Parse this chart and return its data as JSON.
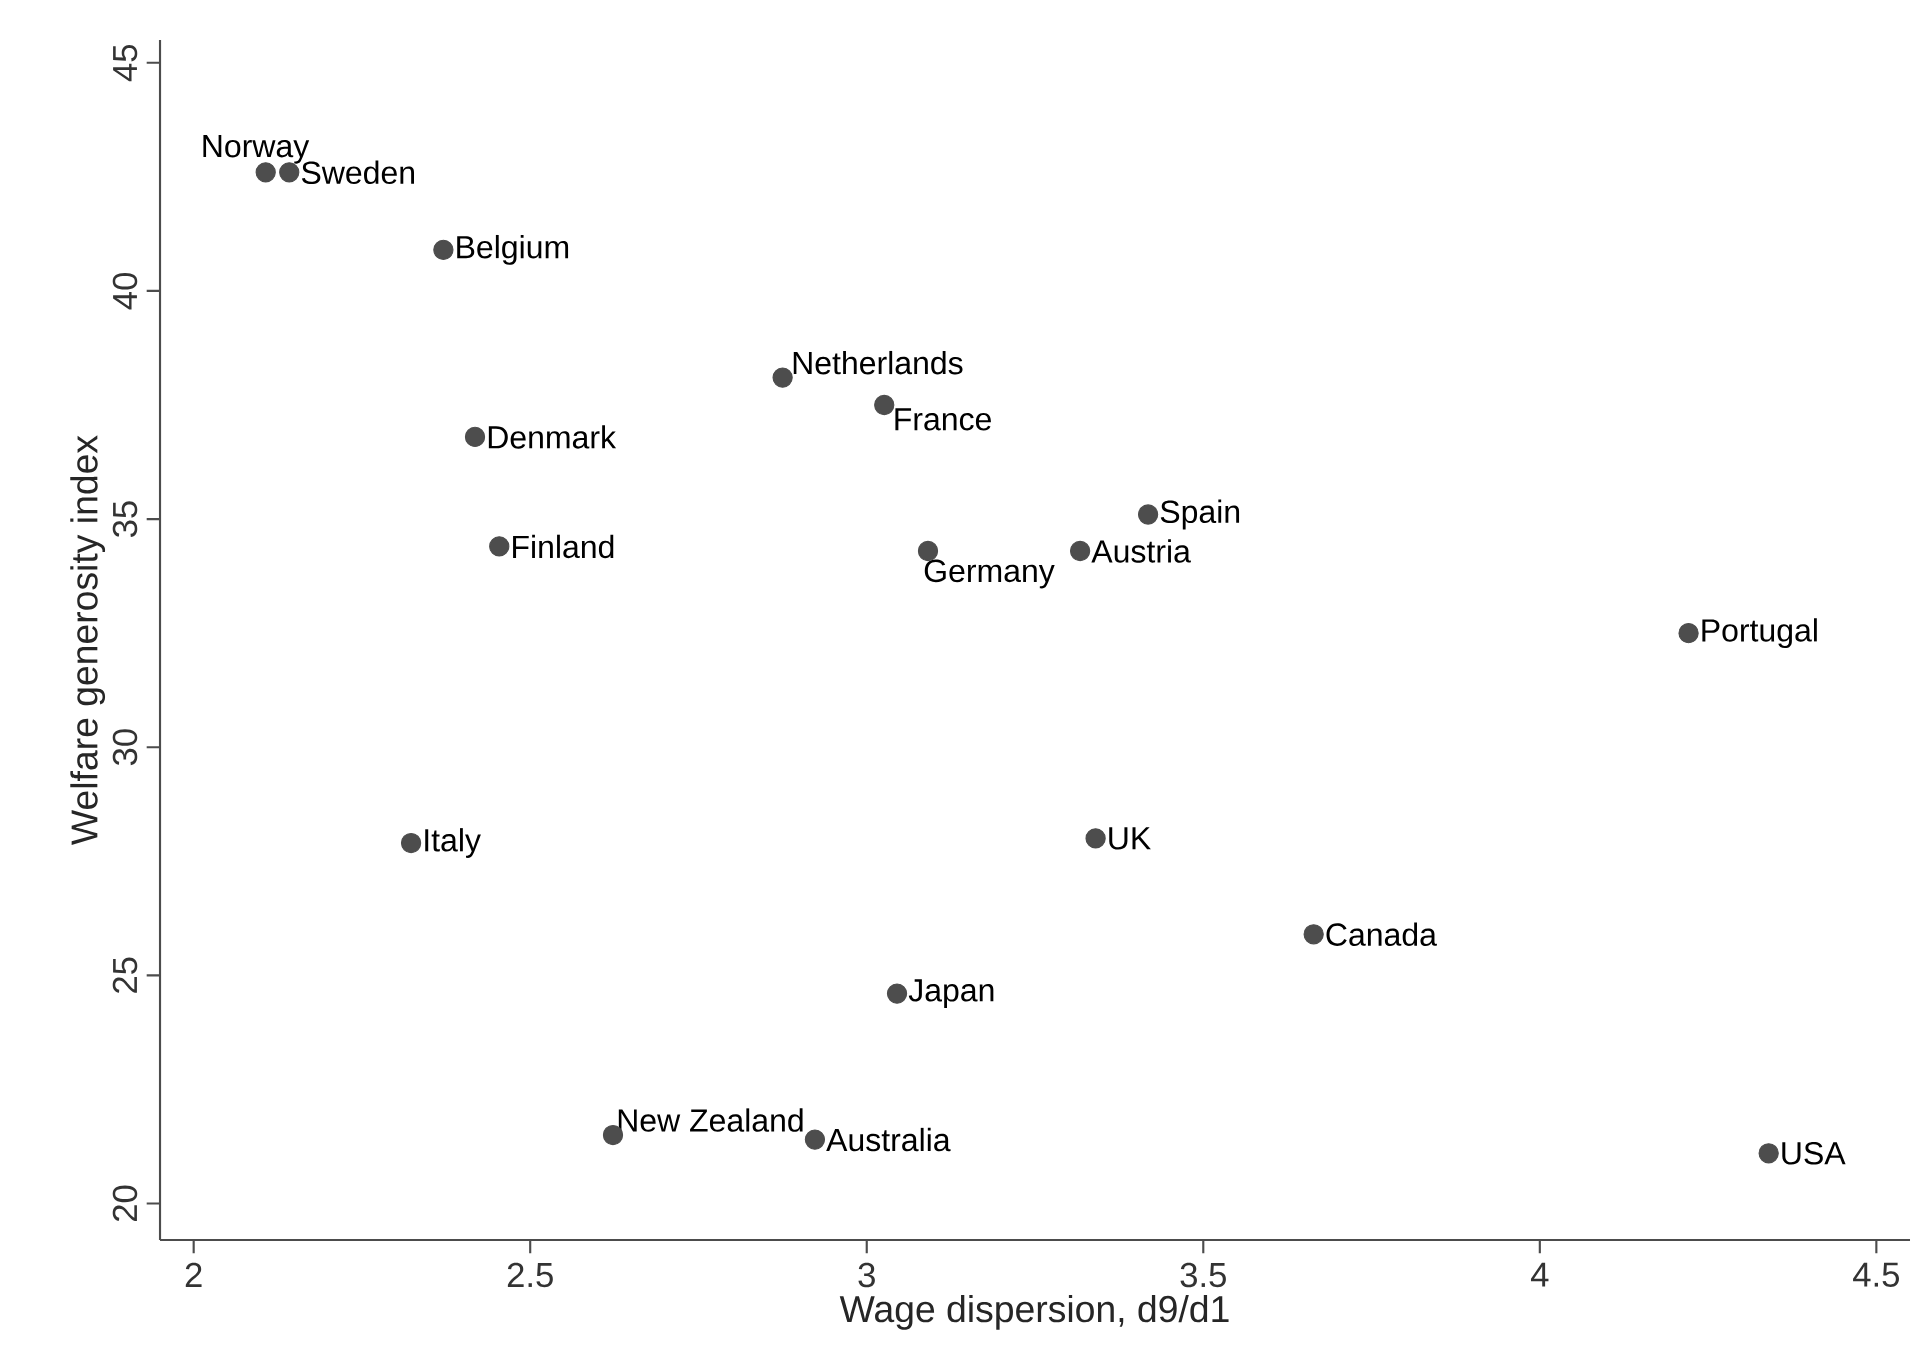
{
  "chart_data": {
    "type": "scatter",
    "xlabel": "Wage dispersion, d9/d1",
    "ylabel": "Welfare generosity index",
    "x": [
      2.107,
      2.142,
      2.371,
      2.875,
      3.026,
      2.418,
      3.418,
      2.454,
      3.091,
      3.317,
      4.221,
      2.323,
      3.34,
      3.664,
      3.045,
      2.623,
      2.923,
      4.34
    ],
    "values": [
      42.6,
      42.6,
      40.9,
      38.1,
      37.5,
      36.8,
      35.1,
      34.4,
      34.3,
      34.3,
      32.5,
      27.9,
      28.0,
      25.9,
      24.6,
      21.5,
      21.4,
      21.1
    ],
    "color": "#4d4d4d",
    "marker": "circle",
    "xlim": [
      1.95,
      4.55
    ],
    "ylim": [
      19.2,
      45.5
    ],
    "xticks": [
      2,
      2.5,
      3,
      3.5,
      4,
      4.5
    ],
    "yticks": [
      20,
      25,
      30,
      35,
      40,
      45
    ],
    "annotations": [
      {
        "text": "Norway",
        "x": 2.107,
        "y": 42.6
      },
      {
        "text": "Sweden",
        "x": 2.142,
        "y": 42.6
      },
      {
        "text": "Belgium",
        "x": 2.371,
        "y": 40.9
      },
      {
        "text": "Netherlands",
        "x": 2.875,
        "y": 38.1
      },
      {
        "text": "France",
        "x": 3.026,
        "y": 37.5
      },
      {
        "text": "Denmark",
        "x": 2.418,
        "y": 36.8
      },
      {
        "text": "Spain",
        "x": 3.418,
        "y": 35.1
      },
      {
        "text": "Finland",
        "x": 2.454,
        "y": 34.4
      },
      {
        "text": "Germany",
        "x": 3.091,
        "y": 34.3
      },
      {
        "text": "Austria",
        "x": 3.317,
        "y": 34.3
      },
      {
        "text": "Portugal",
        "x": 4.221,
        "y": 32.5
      },
      {
        "text": "Italy",
        "x": 2.323,
        "y": 27.9
      },
      {
        "text": "UK",
        "x": 3.34,
        "y": 28.0
      },
      {
        "text": "Canada",
        "x": 3.664,
        "y": 25.9
      },
      {
        "text": "Japan",
        "x": 3.045,
        "y": 24.6
      },
      {
        "text": "New Zealand",
        "x": 2.623,
        "y": 21.5
      },
      {
        "text": "Australia",
        "x": 2.923,
        "y": 21.4
      },
      {
        "text": "USA",
        "x": 4.34,
        "y": 21.1
      }
    ]
  }
}
